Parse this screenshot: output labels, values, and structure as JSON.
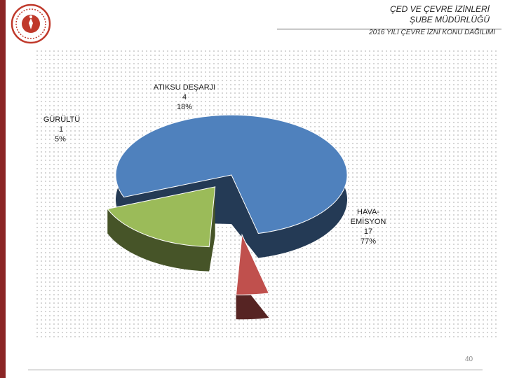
{
  "header": {
    "title_line1": "ÇED VE ÇEVRE İZİNLERİ",
    "title_line2": "ŞUBE MÜDÜRLÜĞÜ",
    "subtitle": "2016 YILI ÇEVRE İZNİ KONU DAĞILIMI"
  },
  "colors": {
    "accent_bar": "#8b2525",
    "hava": "#4f81bd",
    "gurultu": "#c0504d",
    "atiksu": "#9bbb59"
  },
  "chart_data": {
    "type": "pie",
    "title": "",
    "slices": [
      {
        "label": "HAVA-EMİSYON",
        "value": 17,
        "percent": "77%"
      },
      {
        "label": "GÜRÜLTÜ",
        "value": 1,
        "percent": "5%"
      },
      {
        "label": "ATIKSU DEŞARJI",
        "value": 4,
        "percent": "18%"
      }
    ],
    "legend": "none"
  },
  "labels": {
    "hava_l1": "HAVA-",
    "hava_l2": "EMİSYON",
    "hava_value": "17",
    "hava_pct": "77%",
    "gurultu_name": "GÜRÜLTÜ",
    "gurultu_value": "1",
    "gurultu_pct": "5%",
    "atiksu_name": "ATIKSU DEŞARJI",
    "atiksu_value": "4",
    "atiksu_pct": "18%"
  },
  "footer": {
    "page_number": "40"
  }
}
